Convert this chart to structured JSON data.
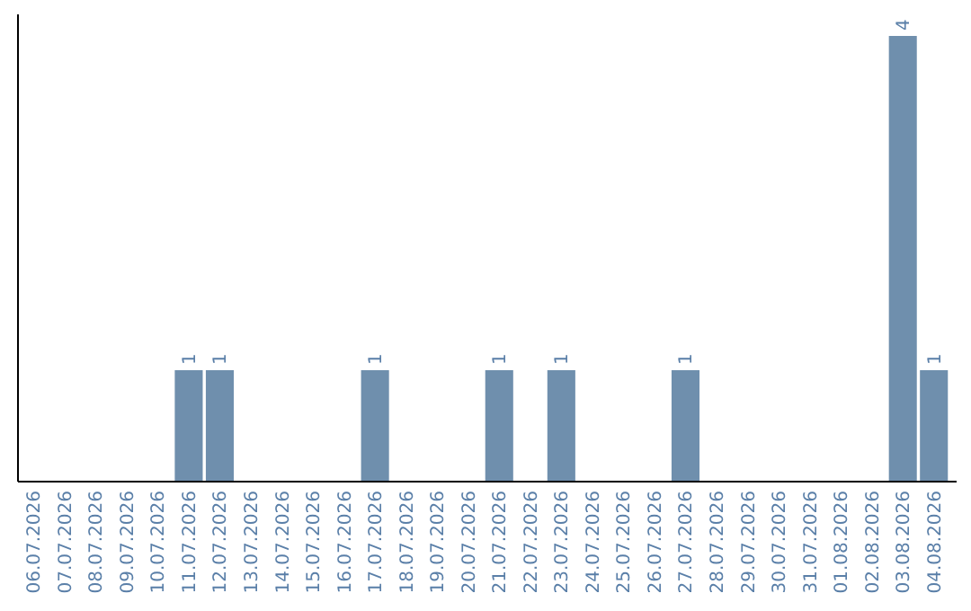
{
  "chart_data": {
    "type": "bar",
    "categories": [
      "06.07.2026",
      "07.07.2026",
      "08.07.2026",
      "09.07.2026",
      "10.07.2026",
      "11.07.2026",
      "12.07.2026",
      "13.07.2026",
      "14.07.2026",
      "15.07.2026",
      "16.07.2026",
      "17.07.2026",
      "18.07.2026",
      "19.07.2026",
      "20.07.2026",
      "21.07.2026",
      "22.07.2026",
      "23.07.2026",
      "24.07.2026",
      "25.07.2026",
      "26.07.2026",
      "27.07.2026",
      "28.07.2026",
      "29.07.2026",
      "30.07.2026",
      "31.07.2026",
      "01.08.2026",
      "02.08.2026",
      "03.08.2026",
      "04.08.2026"
    ],
    "values": [
      0,
      0,
      0,
      0,
      0,
      1,
      1,
      0,
      0,
      0,
      0,
      1,
      0,
      0,
      0,
      1,
      0,
      1,
      0,
      0,
      0,
      1,
      0,
      0,
      0,
      0,
      0,
      0,
      4,
      1
    ],
    "value_labels": [
      null,
      null,
      null,
      null,
      null,
      "1",
      "1",
      null,
      null,
      null,
      null,
      "1",
      null,
      null,
      null,
      "1",
      null,
      "1",
      null,
      null,
      null,
      "1",
      null,
      null,
      null,
      null,
      null,
      null,
      "4",
      "1"
    ],
    "color": "#6f8fad",
    "grid": false,
    "tick_labels": "x"
  }
}
